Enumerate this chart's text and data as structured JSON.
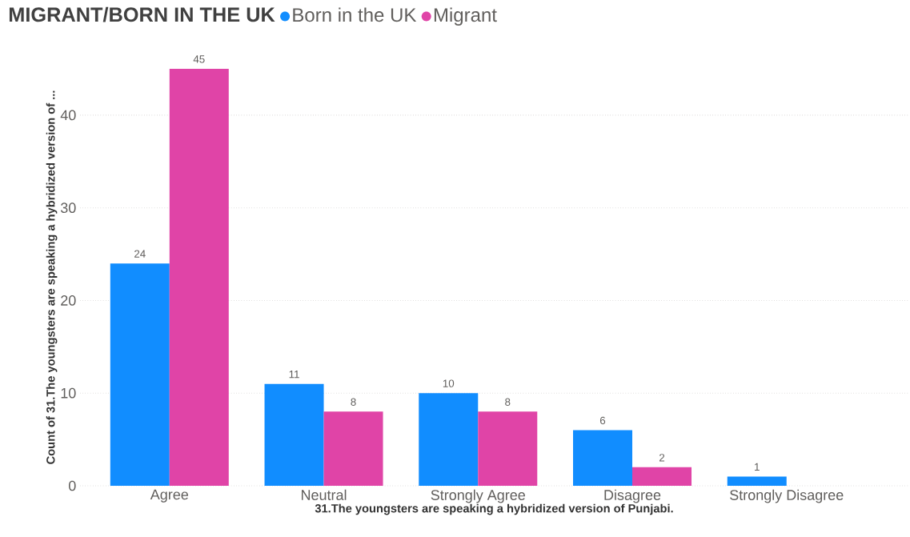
{
  "chart_data": {
    "type": "bar",
    "legend_title": "MIGRANT/BORN IN THE UK",
    "xlabel": "31.The youngsters are speaking a hybridized version of Punjabi.",
    "ylabel": "Count of 31.The youngsters are speaking a hybridized version of ...",
    "categories": [
      "Agree",
      "Neutral",
      "Strongly Agree",
      "Disagree",
      "Strongly Disagree"
    ],
    "series": [
      {
        "name": "Born in the UK",
        "color": "#118dff",
        "values": [
          24,
          11,
          10,
          6,
          1
        ]
      },
      {
        "name": "Migrant",
        "color": "#e044a7",
        "values": [
          45,
          8,
          8,
          2,
          null
        ]
      }
    ],
    "ylim": [
      0,
      45
    ],
    "yticks": [
      0,
      10,
      20,
      30,
      40
    ],
    "grid": "y",
    "legend": "top left",
    "data_labels": true
  }
}
